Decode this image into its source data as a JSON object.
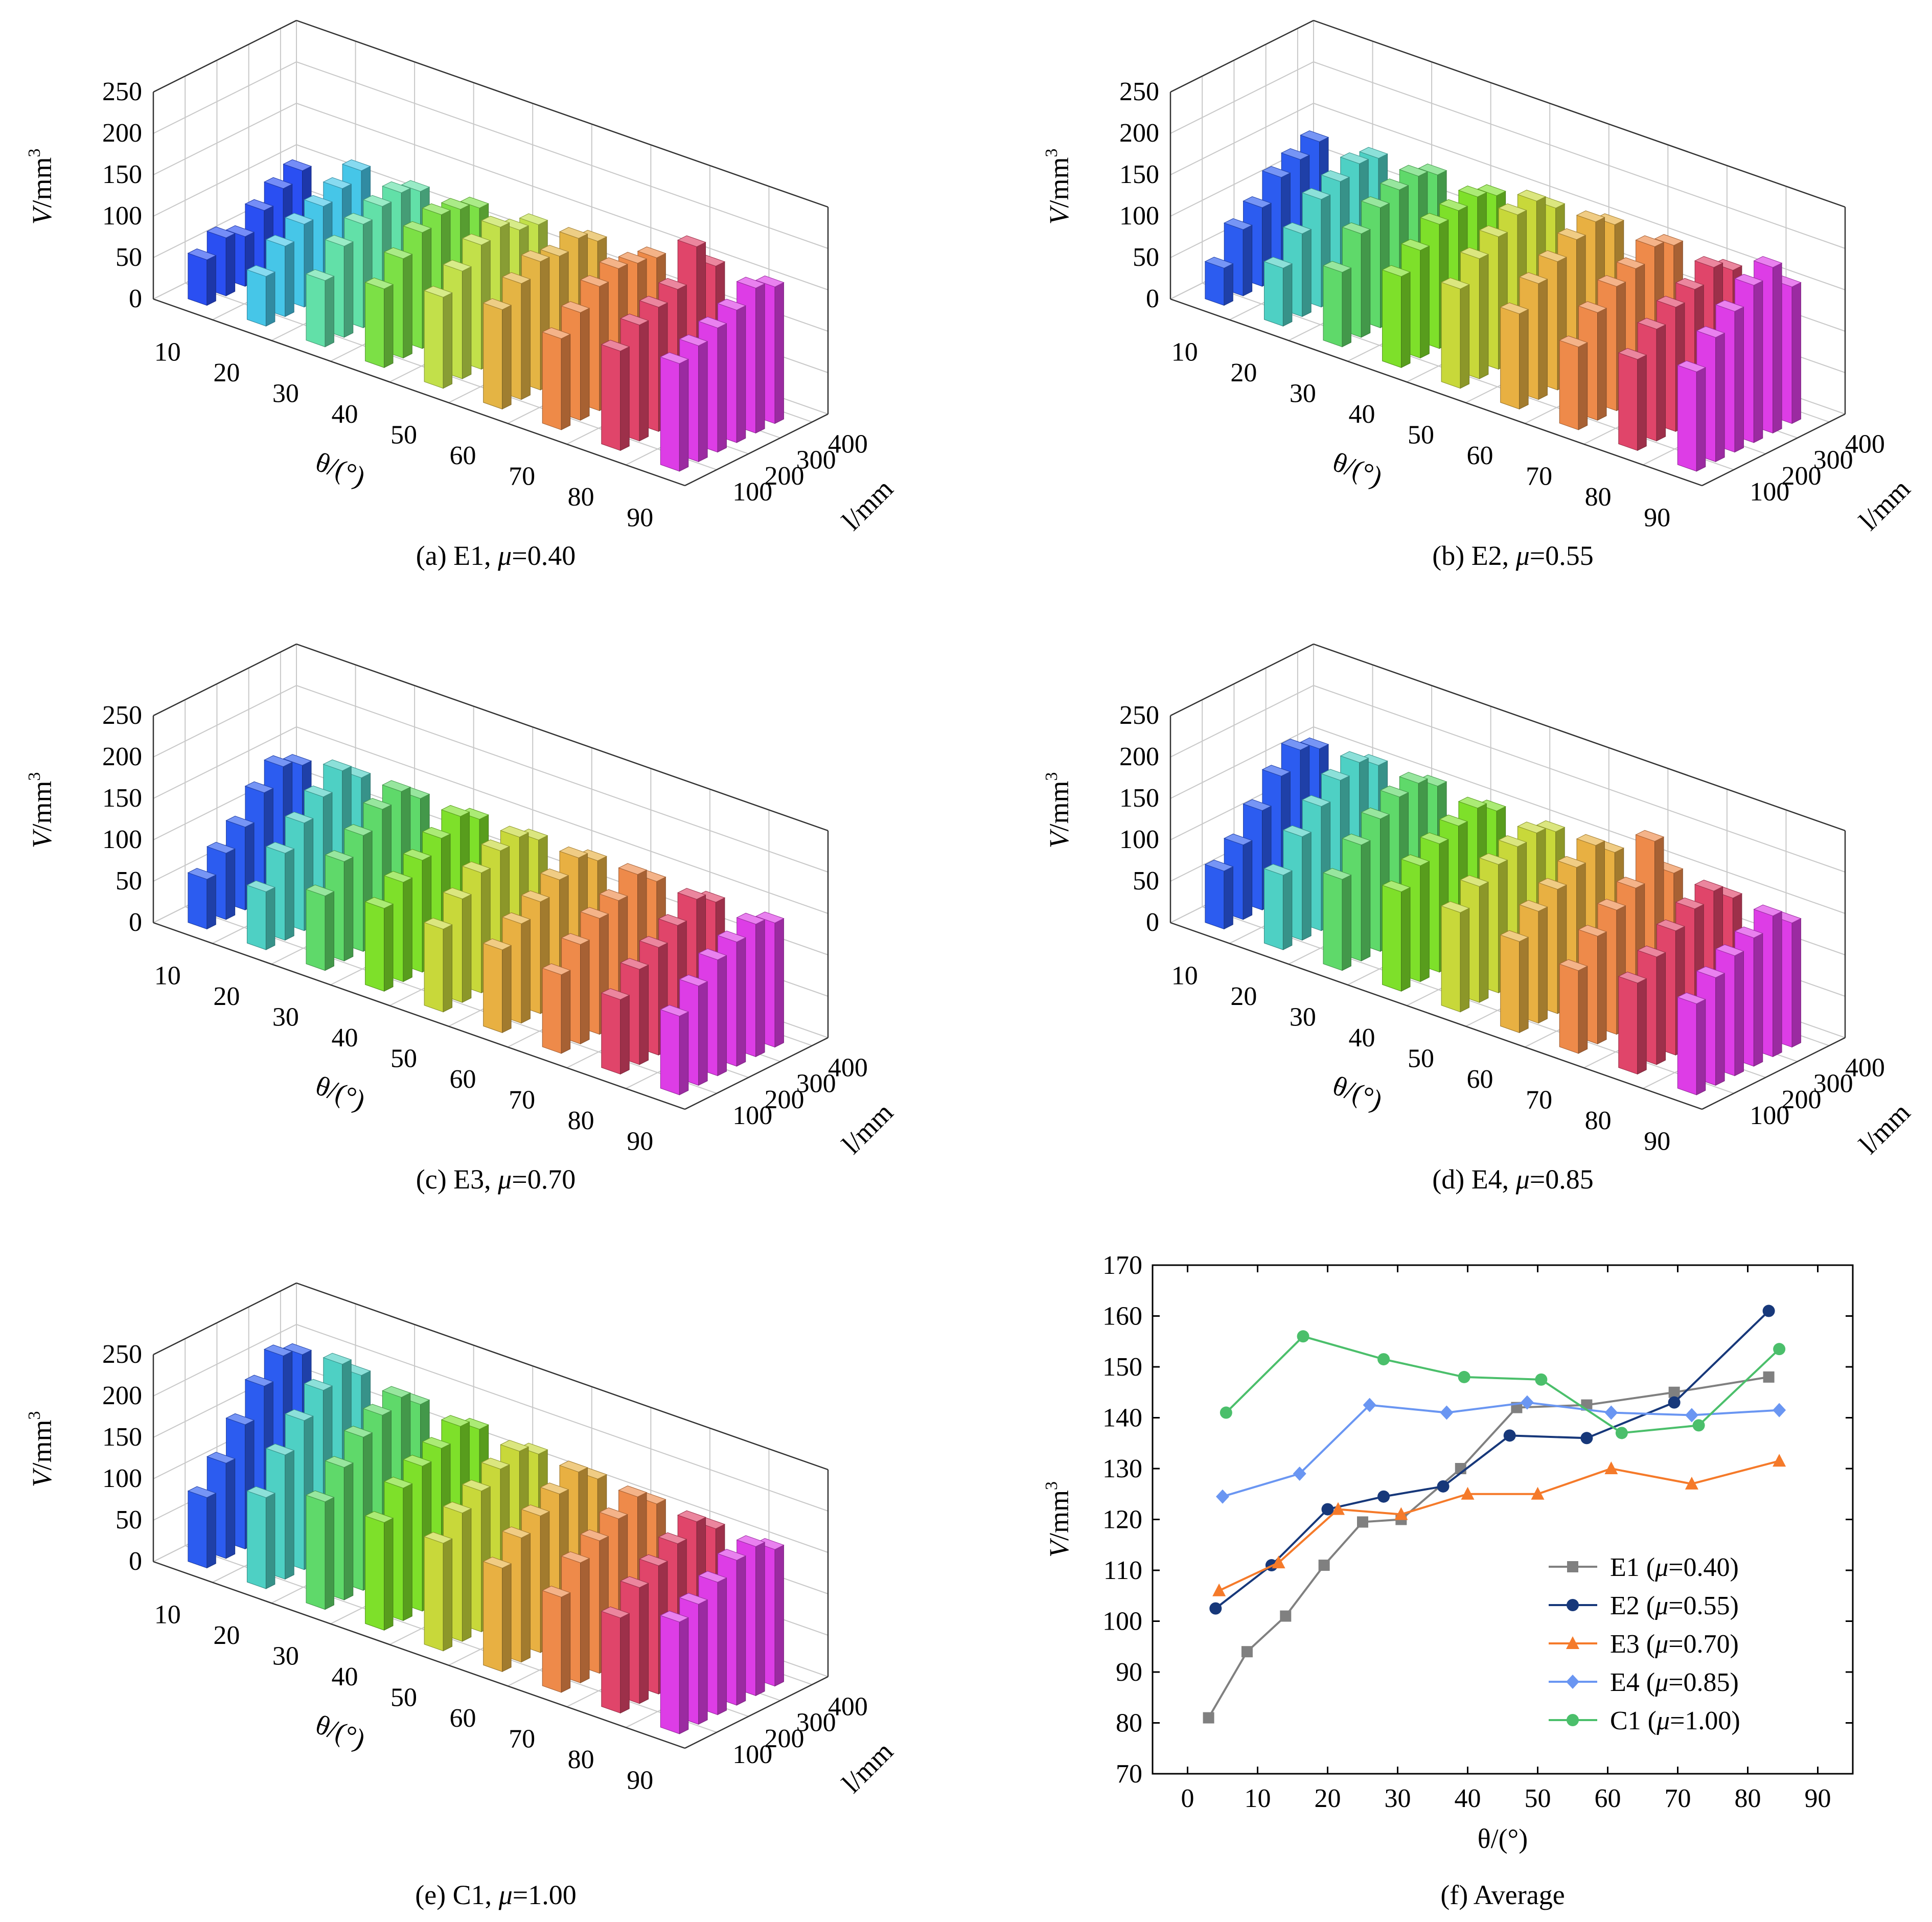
{
  "chart_data": [
    {
      "panel": "a",
      "type": "bar3d",
      "caption": "(a) E1, μ=0.40",
      "caption_prefix": "(a) E1, ",
      "caption_mu_value": "=0.40",
      "zlabel": "V/mm3",
      "zlabel_main": "V/mm",
      "zlabel_sup": "3",
      "xlabel": "θ/(°)",
      "ylabel": "l/mm",
      "z_ticks": [
        "0",
        "50",
        "100",
        "150",
        "200",
        "250"
      ],
      "theta_ticks": [
        "10",
        "20",
        "30",
        "40",
        "50",
        "60",
        "70",
        "80",
        "90"
      ],
      "l_ticks": [
        "100",
        "200",
        "300",
        "400"
      ],
      "zlim": [
        0,
        250
      ],
      "theta": [
        5,
        15,
        25,
        35,
        45,
        55,
        65,
        75,
        85
      ],
      "l": [
        60,
        120,
        180,
        240,
        300,
        360
      ],
      "grid": true,
      "values": [
        [
          55,
          70,
          60,
          80,
          95,
          105
        ],
        [
          60,
          85,
          100,
          110,
          120,
          130
        ],
        [
          80,
          110,
          125,
          135,
          140,
          130
        ],
        [
          95,
          120,
          140,
          150,
          145,
          135
        ],
        [
          110,
          130,
          150,
          160,
          145,
          140
        ],
        [
          120,
          140,
          155,
          150,
          160,
          145
        ],
        [
          110,
          130,
          150,
          160,
          155,
          150
        ],
        [
          120,
          140,
          150,
          160,
          200,
          165
        ],
        [
          130,
          140,
          150,
          160,
          175,
          165
        ]
      ]
    },
    {
      "panel": "b",
      "type": "bar3d",
      "caption": "(b) E2, μ=0.55",
      "caption_prefix": "(b) E2, ",
      "caption_mu_value": "=0.55",
      "zlabel": "V/mm3",
      "zlabel_main": "V/mm",
      "zlabel_sup": "3",
      "xlabel": "θ/(°)",
      "ylabel": "l/mm",
      "z_ticks": [
        "0",
        "50",
        "100",
        "150",
        "200",
        "250"
      ],
      "theta_ticks": [
        "10",
        "20",
        "30",
        "40",
        "50",
        "60",
        "70",
        "80",
        "90"
      ],
      "l_ticks": [
        "100",
        "200",
        "300",
        "400"
      ],
      "zlim": [
        0,
        250
      ],
      "theta": [
        5,
        15,
        25,
        35,
        45,
        55,
        65,
        75,
        85
      ],
      "l": [
        60,
        120,
        180,
        240,
        300,
        360
      ],
      "grid": true,
      "values": [
        [
          45,
          80,
          95,
          120,
          130,
          140
        ],
        [
          70,
          100,
          130,
          140,
          150,
          145
        ],
        [
          90,
          125,
          145,
          155,
          160,
          150
        ],
        [
          110,
          130,
          150,
          155,
          160,
          150
        ],
        [
          120,
          145,
          160,
          175,
          180,
          160
        ],
        [
          115,
          140,
          155,
          170,
          180,
          165
        ],
        [
          100,
          130,
          150,
          160,
          175,
          165
        ],
        [
          110,
          135,
          150,
          160,
          175,
          160
        ],
        [
          120,
          150,
          170,
          190,
          200,
          165
        ]
      ]
    },
    {
      "panel": "c",
      "type": "bar3d",
      "caption": "(c) E3, μ=0.70",
      "caption_prefix": "(c) E3, ",
      "caption_mu_value": "=0.70",
      "zlabel": "V/mm3",
      "zlabel_main": "V/mm",
      "zlabel_sup": "3",
      "xlabel": "θ/(°)",
      "ylabel": "l/mm",
      "z_ticks": [
        "0",
        "50",
        "100",
        "150",
        "200",
        "250"
      ],
      "theta_ticks": [
        "10",
        "20",
        "30",
        "40",
        "50",
        "60",
        "70",
        "80",
        "90"
      ],
      "l_ticks": [
        "100",
        "200",
        "300",
        "400"
      ],
      "zlim": [
        0,
        250
      ],
      "theta": [
        5,
        15,
        25,
        35,
        45,
        55,
        65,
        75,
        85
      ],
      "l": [
        60,
        120,
        180,
        240,
        300,
        360
      ],
      "grid": true,
      "values": [
        [
          60,
          80,
          100,
          130,
          150,
          140
        ],
        [
          70,
          105,
          130,
          150,
          170,
          150
        ],
        [
          90,
          120,
          140,
          160,
          170,
          150
        ],
        [
          100,
          120,
          135,
          150,
          165,
          150
        ],
        [
          100,
          125,
          145,
          160,
          165,
          150
        ],
        [
          100,
          120,
          135,
          150,
          165,
          150
        ],
        [
          95,
          120,
          140,
          150,
          170,
          150
        ],
        [
          90,
          115,
          130,
          145,
          165,
          150
        ],
        [
          95,
          120,
          140,
          150,
          160,
          150
        ]
      ]
    },
    {
      "panel": "d",
      "type": "bar3d",
      "caption": "(d) E4, μ=0.85",
      "caption_prefix": "(d) E4, ",
      "caption_mu_value": "=0.85",
      "zlabel": "V/mm3",
      "zlabel_main": "V/mm",
      "zlabel_sup": "3",
      "xlabel": "θ/(°)",
      "ylabel": "l/mm",
      "z_ticks": [
        "0",
        "50",
        "100",
        "150",
        "200",
        "250"
      ],
      "theta_ticks": [
        "10",
        "20",
        "30",
        "40",
        "50",
        "60",
        "70",
        "80",
        "90"
      ],
      "l_ticks": [
        "100",
        "200",
        "300",
        "400"
      ],
      "zlim": [
        0,
        250
      ],
      "theta": [
        5,
        15,
        25,
        35,
        45,
        55,
        65,
        75,
        85
      ],
      "l": [
        60,
        120,
        180,
        240,
        300,
        360
      ],
      "grid": true,
      "values": [
        [
          70,
          90,
          120,
          150,
          170,
          160
        ],
        [
          90,
          125,
          150,
          170,
          180,
          165
        ],
        [
          110,
          140,
          160,
          175,
          180,
          165
        ],
        [
          120,
          140,
          155,
          165,
          175,
          160
        ],
        [
          120,
          140,
          155,
          165,
          170,
          160
        ],
        [
          110,
          135,
          150,
          165,
          180,
          160
        ],
        [
          100,
          130,
          150,
          165,
          210,
          160
        ],
        [
          110,
          130,
          150,
          165,
          175,
          155
        ],
        [
          110,
          130,
          145,
          155,
          170,
          150
        ]
      ]
    },
    {
      "panel": "e",
      "type": "bar3d",
      "caption": "(e) C1, μ=1.00",
      "caption_prefix": "(e) C1, ",
      "caption_mu_value": "=1.00",
      "zlabel": "V/mm3",
      "zlabel_main": "V/mm",
      "zlabel_sup": "3",
      "xlabel": "θ/(°)",
      "ylabel": "l/mm",
      "z_ticks": [
        "0",
        "50",
        "100",
        "150",
        "200",
        "250"
      ],
      "theta_ticks": [
        "10",
        "20",
        "30",
        "40",
        "50",
        "60",
        "70",
        "80",
        "90"
      ],
      "l_ticks": [
        "100",
        "200",
        "300",
        "400"
      ],
      "zlim": [
        0,
        250
      ],
      "theta": [
        5,
        15,
        25,
        35,
        45,
        55,
        65,
        75,
        85
      ],
      "l": [
        60,
        120,
        180,
        240,
        300,
        360
      ],
      "grid": true,
      "values": [
        [
          85,
          115,
          150,
          185,
          210,
          200
        ],
        [
          110,
          150,
          180,
          205,
          225,
          200
        ],
        [
          130,
          160,
          185,
          200,
          210,
          190
        ],
        [
          130,
          160,
          175,
          185,
          200,
          185
        ],
        [
          130,
          155,
          170,
          185,
          195,
          180
        ],
        [
          125,
          150,
          165,
          180,
          195,
          175
        ],
        [
          115,
          145,
          160,
          175,
          190,
          170
        ],
        [
          115,
          140,
          155,
          170,
          185,
          165
        ],
        [
          135,
          145,
          160,
          175,
          180,
          165
        ]
      ]
    },
    {
      "panel": "f",
      "type": "line",
      "caption": "(f) Average",
      "xlabel": "θ/(°)",
      "ylabel": "V/mm3",
      "ylabel_main": "V/mm",
      "ylabel_sup": "3",
      "xlim": [
        -5,
        95
      ],
      "ylim": [
        70,
        170
      ],
      "x_ticks": [
        "0",
        "10",
        "20",
        "30",
        "40",
        "50",
        "60",
        "70",
        "80",
        "90"
      ],
      "y_ticks": [
        "70",
        "80",
        "90",
        "100",
        "110",
        "120",
        "130",
        "140",
        "150",
        "160",
        "170"
      ],
      "legend_position": "lower-right",
      "series": [
        {
          "name": "E1 (μ=0.40)",
          "name_prefix": "E1 (",
          "name_value": "=0.40)",
          "color": "#808080",
          "marker": "square",
          "x": [
            3,
            8.5,
            14,
            19.5,
            25,
            30.5,
            39,
            47,
            57,
            69.5,
            83
          ],
          "y": [
            81,
            94,
            101,
            111,
            119.5,
            120,
            130,
            142,
            142.5,
            145,
            148
          ]
        },
        {
          "name": "E2 (μ=0.55)",
          "name_prefix": "E2 (",
          "name_value": "=0.55)",
          "color": "#17387a",
          "marker": "circle",
          "x": [
            4,
            12,
            20,
            28,
            36.5,
            46,
            57,
            69.5,
            83
          ],
          "y": [
            102.5,
            111,
            122,
            124.5,
            126.5,
            136.5,
            136,
            143,
            161
          ]
        },
        {
          "name": "E3 (μ=0.70)",
          "name_prefix": "E3 (",
          "name_value": "=0.70)",
          "color": "#f57a2a",
          "marker": "triangle",
          "x": [
            4.5,
            13,
            21.5,
            30.5,
            40,
            50,
            60.5,
            72,
            84.5
          ],
          "y": [
            106,
            111.5,
            122,
            121,
            125,
            125,
            130,
            127,
            131.5
          ]
        },
        {
          "name": "E4 (μ=0.85)",
          "name_prefix": "E4 (",
          "name_value": "=0.85)",
          "color": "#6a96f2",
          "marker": "diamond",
          "x": [
            5,
            16,
            26,
            37,
            48.5,
            60.5,
            72,
            84.5
          ],
          "y": [
            124.5,
            129,
            142.5,
            141,
            143,
            141,
            140.5,
            141.5
          ]
        },
        {
          "name": "C1 (μ=1.00)",
          "name_prefix": "C1 (",
          "name_value": "=1.00)",
          "color": "#4bbf6b",
          "marker": "circle",
          "x": [
            5.5,
            16.5,
            28,
            39.5,
            50.5,
            62,
            73,
            84.5
          ],
          "y": [
            141,
            156,
            151.5,
            148,
            147.5,
            137,
            138.5,
            153.5
          ]
        }
      ]
    }
  ]
}
